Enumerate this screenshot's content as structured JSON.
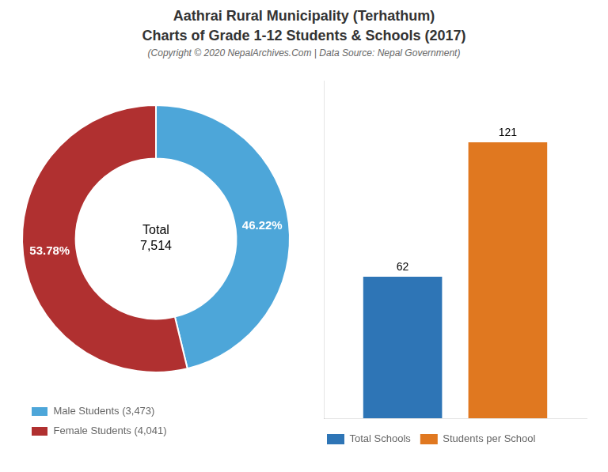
{
  "title": [
    "Aathrai Rural Municipality (Terhathum)",
    "Charts of Grade 1-12 Students & Schools (2017)"
  ],
  "subtitle": "(Copyright © 2020 NepalArchives.Com | Data Source: Nepal Government)",
  "chart_data": [
    {
      "type": "doughnut",
      "categories": [
        "Male Students (3,473)",
        "Female Students (4,041)"
      ],
      "values": [
        46.22,
        53.78
      ],
      "value_labels": [
        "46.22%",
        "53.78%"
      ],
      "colors": [
        "#4da6d9",
        "#b03030"
      ],
      "data_labels": true,
      "annotations": [
        "Total\n7,514"
      ],
      "legend": "lower left"
    },
    {
      "type": "bar",
      "categories": [
        null
      ],
      "series": [
        {
          "name": "Total Schools",
          "color": "#2e75b6",
          "values": [
            62
          ]
        },
        {
          "name": "Students per School",
          "color": "#e07820",
          "values": [
            121
          ]
        }
      ],
      "ylim": [
        0,
        148
      ],
      "yticks": [],
      "grid": false,
      "tick_labels": false,
      "data_labels": true,
      "legend": "lower left"
    }
  ]
}
